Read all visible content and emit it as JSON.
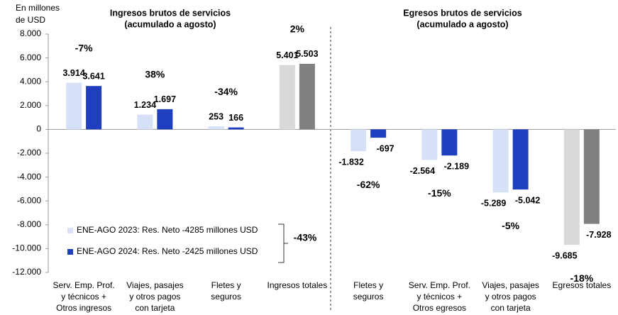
{
  "chart_data": {
    "type": "bar",
    "y_label": [
      "En millones",
      "de USD"
    ],
    "titles": [
      [
        "Ingresos brutos de servicios",
        "(acumulado a agosto)"
      ],
      [
        "Egresos brutos de servicios",
        "(acumulado a agosto)"
      ]
    ],
    "categories": [
      [
        "Serv. Emp. Prof.",
        "y técnicos +",
        "Otros ingresos"
      ],
      [
        "Viajes, pasajes",
        "y otros pagos",
        "con tarjeta"
      ],
      [
        "Fletes y",
        "seguros"
      ],
      [
        "Ingresos totales"
      ],
      [
        "Fletes y",
        "seguros"
      ],
      [
        "Serv. Emp. Prof.",
        "y técnicos +",
        "Otros egresos"
      ],
      [
        "Viajes, pasajes",
        "y otros pagos",
        "con tarjeta"
      ],
      [
        "Egresos totales"
      ]
    ],
    "series": [
      {
        "name": "ENE-AGO 2023: Res. Neto -4285 millones USD",
        "color": "#d6e0f7",
        "colors": [
          "#d6e0f7",
          "#d6e0f7",
          "#d6e0f7",
          "#d9d9d9",
          "#d6e0f7",
          "#d6e0f7",
          "#d6e0f7",
          "#d9d9d9"
        ],
        "values": [
          3914,
          1234,
          253,
          5401,
          -1832,
          -2564,
          -5289,
          -9685
        ],
        "value_labels": [
          "3.914",
          "1.234",
          "253",
          "5.401",
          "-1.832",
          "-2.564",
          "-5.289",
          "-9.685"
        ]
      },
      {
        "name": "ENE-AGO 2024: Res. Neto -2425 millones USD",
        "color": "#1f3fbf",
        "colors": [
          "#1f3fbf",
          "#1f3fbf",
          "#1f3fbf",
          "#808080",
          "#1f3fbf",
          "#1f3fbf",
          "#1f3fbf",
          "#808080"
        ],
        "values": [
          3641,
          1697,
          166,
          5503,
          -697,
          -2189,
          -5042,
          -7928
        ],
        "value_labels": [
          "3.641",
          "1.697",
          "166",
          "5.503",
          "-697",
          "-2.189",
          "-5.042",
          "-7.928"
        ]
      }
    ],
    "changes": [
      {
        "label": "-7%",
        "color": "#ee1111"
      },
      {
        "label": "38%",
        "color": "#22aa44"
      },
      {
        "label": "-34%",
        "color": "#ee1111"
      },
      {
        "label": "2%",
        "color": "#22aa44"
      },
      {
        "label": "-62%",
        "color": "#ee1111"
      },
      {
        "label": "-15%",
        "color": "#ee1111"
      },
      {
        "label": "-5%",
        "color": "#ee1111"
      },
      {
        "label": "-18%",
        "color": "#ee1111"
      }
    ],
    "net_change": {
      "label": "-43%",
      "color": "#ee1111"
    },
    "ylim": [
      -12000,
      8000
    ],
    "yticks": [
      {
        "value": -12000,
        "label": "-12.000"
      },
      {
        "value": -10000,
        "label": "-10.000"
      },
      {
        "value": -8000,
        "label": "-8.000"
      },
      {
        "value": -6000,
        "label": "-6.000"
      },
      {
        "value": -4000,
        "label": "-4.000"
      },
      {
        "value": -2000,
        "label": "-2.000"
      },
      0,
      {
        "value": 2000,
        "label": "2.000"
      },
      {
        "value": 4000,
        "label": "4.000"
      },
      {
        "value": 6000,
        "label": "6.000"
      },
      {
        "value": 8000,
        "label": "8.000"
      }
    ]
  }
}
